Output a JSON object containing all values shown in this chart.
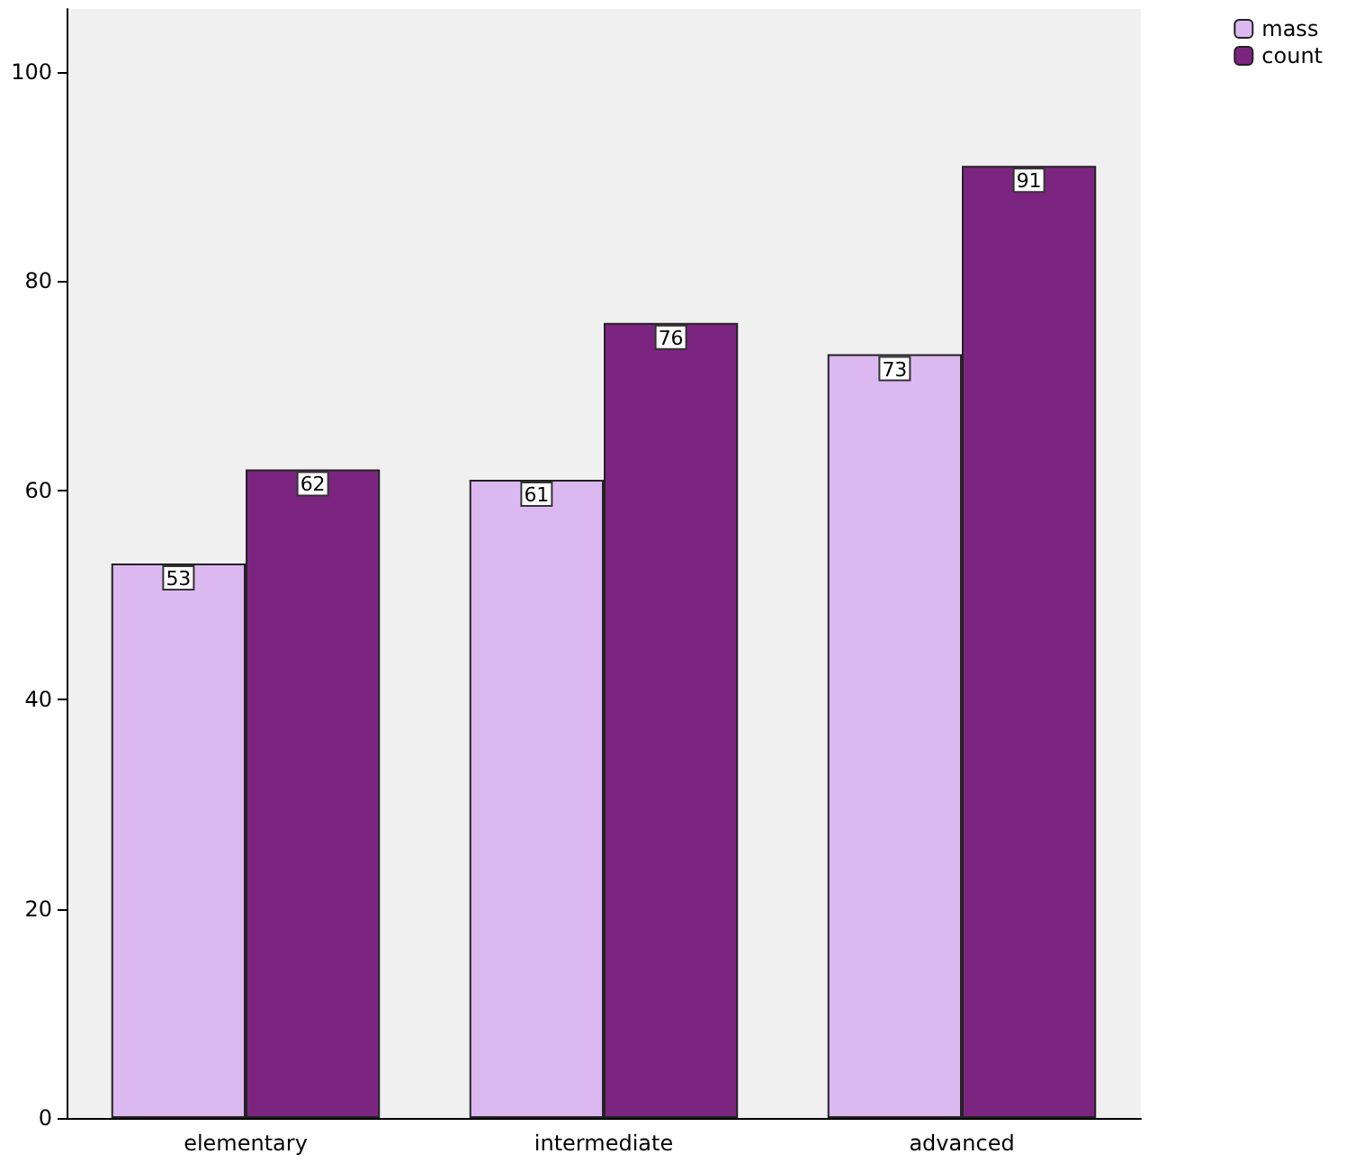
{
  "chart_data": {
    "type": "bar",
    "categories": [
      "elementary",
      "intermediate",
      "advanced"
    ],
    "series": [
      {
        "name": "mass",
        "color": "#dcb8f0",
        "values": [
          53,
          61,
          73
        ]
      },
      {
        "name": "count",
        "color": "#7b2580",
        "values": [
          62,
          76,
          91
        ]
      }
    ],
    "ylim": [
      0,
      106
    ],
    "yticks": [
      0,
      20,
      40,
      60,
      80,
      100
    ],
    "grid": false,
    "legend": "top right",
    "data_labels": true
  }
}
